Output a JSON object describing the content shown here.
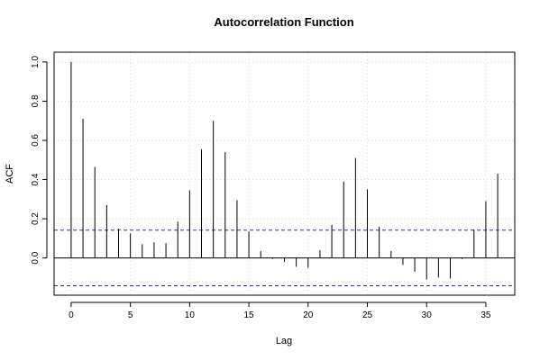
{
  "chart_data": {
    "type": "bar",
    "title": "Autocorrelation Function",
    "xlabel": "Lag",
    "ylabel": "ACF",
    "x": [
      0,
      1,
      2,
      3,
      4,
      5,
      6,
      7,
      8,
      9,
      10,
      11,
      12,
      13,
      14,
      15,
      16,
      17,
      18,
      19,
      20,
      21,
      22,
      23,
      24,
      25,
      26,
      27,
      28,
      29,
      30,
      31,
      32,
      33,
      34,
      35,
      36
    ],
    "values": [
      1.0,
      0.71,
      0.465,
      0.27,
      0.15,
      0.125,
      0.07,
      0.08,
      0.075,
      0.185,
      0.345,
      0.555,
      0.7,
      0.54,
      0.295,
      0.135,
      0.035,
      -0.005,
      -0.02,
      -0.045,
      -0.05,
      0.04,
      0.17,
      0.39,
      0.51,
      0.35,
      0.16,
      0.035,
      -0.035,
      -0.07,
      -0.11,
      -0.1,
      -0.105,
      -0.005,
      0.145,
      0.29,
      0.43
    ],
    "ci": [
      0.142,
      -0.142
    ],
    "xlim": [
      -1.44,
      37.44
    ],
    "ylim": [
      -0.19,
      1.05
    ],
    "xticks": [
      0,
      5,
      10,
      15,
      20,
      25,
      30,
      35
    ],
    "xtick_labels": [
      "0",
      "5",
      "10",
      "15",
      "20",
      "25",
      "30",
      "35"
    ],
    "yticks": [
      0.0,
      0.2,
      0.4,
      0.6,
      0.8,
      1.0
    ],
    "ytick_labels": [
      "0.0",
      "0.2",
      "0.4",
      "0.6",
      "0.8",
      "1.0"
    ],
    "grid": true
  }
}
